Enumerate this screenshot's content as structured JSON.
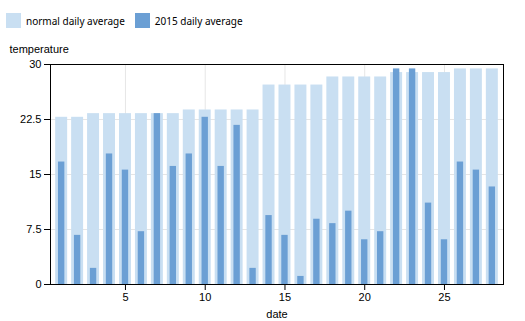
{
  "chart_data": {
    "type": "bar",
    "x": [
      1,
      2,
      3,
      4,
      5,
      6,
      7,
      8,
      9,
      10,
      11,
      12,
      13,
      14,
      15,
      16,
      17,
      18,
      19,
      20,
      21,
      22,
      23,
      24,
      25,
      26,
      27,
      28
    ],
    "series": [
      {
        "name": "normal daily average",
        "color": "#c9dff2",
        "values": [
          22.8,
          22.8,
          23.3,
          23.3,
          23.3,
          23.3,
          23.3,
          23.3,
          23.8,
          23.8,
          23.8,
          23.8,
          23.8,
          27.2,
          27.2,
          27.2,
          27.2,
          28.3,
          28.3,
          28.3,
          28.3,
          28.9,
          28.9,
          28.9,
          28.9,
          29.4,
          29.4,
          29.4
        ]
      },
      {
        "name": "2015 daily average",
        "color": "#6b9fd4",
        "values": [
          16.7,
          6.7,
          2.2,
          17.8,
          15.6,
          7.2,
          23.3,
          16.1,
          17.8,
          22.8,
          16.1,
          21.7,
          2.2,
          9.4,
          6.7,
          1.1,
          8.9,
          8.3,
          10.0,
          6.1,
          7.2,
          29.4,
          29.4,
          11.1,
          6.1,
          16.7,
          15.6,
          13.3
        ]
      }
    ],
    "xlabel": "date",
    "ylabel": "temperature",
    "xlim": [
      0.3,
      28.7
    ],
    "xticks": [
      5,
      10,
      15,
      20,
      25
    ],
    "ylim": [
      0,
      30
    ],
    "yticks": [
      0,
      7.5,
      15,
      22.5,
      30
    ],
    "grid": true,
    "legend": "upper left"
  }
}
